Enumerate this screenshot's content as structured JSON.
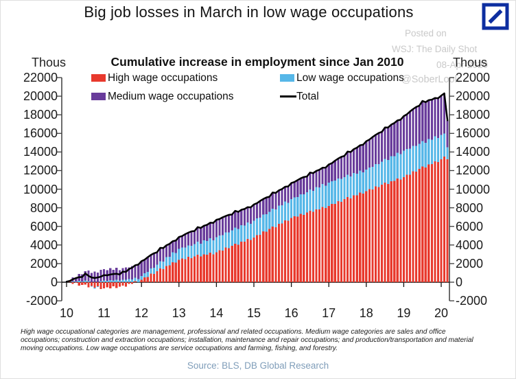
{
  "page": {
    "title": "Big job losses in March in low wage occupations",
    "source": "Source: BLS, DB Global Research",
    "logo": {
      "name": "deutsche-bank-logo",
      "color": "#0d2ea0"
    },
    "watermark": {
      "line1": "Posted on",
      "line2": "WSJ: The Daily Shot",
      "line3": "08-Apr-2020",
      "line4": "@SoberLook"
    },
    "footnote_lines": [
      "High wage occupational categories are management, professional and related occupations. Medium wage categories are sales and office",
      "occupations; construction and extraction occupations; installation, maintenance and repair occupations; and production/transportation and material",
      "moving occupations. Low wage occupations are service occupations and farming, fishing, and forestry."
    ]
  },
  "chart_data": {
    "type": "bar",
    "stacked": true,
    "line_overlay": "Total",
    "title": "Cumulative increase in employment since Jan 2010",
    "y_axis_label_left": "Thous",
    "y_axis_label_right": "Thous",
    "ylim": [
      -2000,
      22000
    ],
    "y_ticks": [
      22000,
      20000,
      18000,
      16000,
      14000,
      12000,
      10000,
      8000,
      6000,
      4000,
      2000,
      0,
      -2000
    ],
    "x_tick_labels": [
      "10",
      "11",
      "12",
      "13",
      "14",
      "15",
      "16",
      "17",
      "18",
      "19",
      "20"
    ],
    "x_start": "2010-01",
    "x_end": "2020-03",
    "frequency": "monthly",
    "grid": false,
    "legend_position": "top-inside",
    "bar_stack_order": [
      "High wage occupations",
      "Low wage occupations",
      "Medium wage occupations"
    ],
    "axis_color": "#3c3c3c",
    "series": [
      {
        "name": "High wage occupations",
        "color": "#e8392d",
        "values": [
          0,
          20,
          -200,
          -80,
          -360,
          -280,
          -260,
          -550,
          -410,
          -580,
          -460,
          -740,
          -650,
          -540,
          -670,
          -460,
          -640,
          -480,
          -360,
          -490,
          -180,
          -180,
          110,
          0,
          250,
          520,
          540,
          910,
          880,
          1200,
          1460,
          1390,
          1750,
          1810,
          2150,
          2090,
          2400,
          2560,
          2460,
          2720,
          2580,
          2780,
          2940,
          2760,
          3000,
          2950,
          3180,
          3000,
          3200,
          3420,
          3400,
          3720,
          3640,
          3920,
          4140,
          4020,
          4340,
          4350,
          4640,
          4540,
          4800,
          5070,
          5080,
          5450,
          5410,
          5730,
          5990,
          5920,
          6270,
          6330,
          6660,
          6600,
          6900,
          7100,
          7050,
          7350,
          7240,
          7490,
          7690,
          7550,
          7840,
          7830,
          8090,
          7960,
          8200,
          8420,
          8400,
          8720,
          8640,
          8920,
          9140,
          9020,
          9340,
          9350,
          9640,
          9540,
          9800,
          10020,
          9980,
          10300,
          10210,
          10480,
          10690,
          10570,
          10870,
          10880,
          11160,
          11050,
          11300,
          11560,
          11560,
          11920,
          11880,
          12180,
          12440,
          12340,
          12670,
          12700,
          13010,
          12920,
          13200,
          13500,
          13200
        ]
      },
      {
        "name": "Low wage occupations",
        "color": "#56b7e8",
        "values": [
          20,
          0,
          90,
          60,
          130,
          90,
          170,
          120,
          -80,
          -120,
          -60,
          110,
          170,
          140,
          220,
          180,
          250,
          190,
          270,
          250,
          340,
          310,
          380,
          340,
          420,
          430,
          570,
          570,
          680,
          670,
          800,
          810,
          940,
          940,
          1060,
          1050,
          1170,
          1160,
          1270,
          1240,
          1330,
          1300,
          1400,
          1380,
          1490,
          1470,
          1560,
          1520,
          1620,
          1590,
          1670,
          1630,
          1700,
          1640,
          1720,
          1690,
          1770,
          1730,
          1800,
          1740,
          1820,
          1790,
          1870,
          1830,
          1900,
          1840,
          1920,
          1890,
          1970,
          1930,
          2000,
          1940,
          2020,
          2010,
          2120,
          2110,
          2200,
          2170,
          2270,
          2260,
          2370,
          2360,
          2450,
          2420,
          2520,
          2450,
          2510,
          2430,
          2460,
          2380,
          2420,
          2350,
          2410,
          2330,
          2360,
          2280,
          2320,
          2310,
          2420,
          2400,
          2500,
          2470,
          2570,
          2560,
          2670,
          2660,
          2750,
          2720,
          2820,
          2750,
          2810,
          2730,
          2760,
          2680,
          2720,
          2650,
          2710,
          2630,
          2660,
          2580,
          2620,
          2500,
          1300
        ]
      },
      {
        "name": "Medium wage occupations",
        "color": "#693c9b",
        "values": [
          40,
          110,
          410,
          460,
          770,
          750,
          1030,
          1120,
          1000,
          1150,
          1030,
          1230,
          1240,
          1140,
          1280,
          1160,
          1300,
          1120,
          1230,
          1350,
          1250,
          1430,
          1330,
          1550,
          1590,
          1470,
          1580,
          1440,
          1550,
          1350,
          1430,
          1470,
          1280,
          1380,
          1200,
          1340,
          1290,
          1240,
          1430,
          1360,
          1550,
          1420,
          1580,
          1690,
          1580,
          1750,
          1650,
          1860,
          1890,
          1780,
          1910,
          1770,
          1900,
          1710,
          1810,
          1850,
          1680,
          1790,
          1630,
          1770,
          1740,
          1640,
          1780,
          1660,
          1800,
          1620,
          1730,
          1790,
          1630,
          1750,
          1600,
          1760,
          1740,
          1660,
          1810,
          1710,
          1870,
          1700,
          1830,
          1910,
          1760,
          1900,
          1770,
          1940,
          1940,
          1930,
          2160,
          2140,
          2370,
          2280,
          2480,
          2630,
          2560,
          2780,
          2720,
          2970,
          3040,
          3000,
          3200,
          3140,
          3330,
          3210,
          3380,
          3500,
          3400,
          3580,
          3480,
          3700,
          3740,
          3740,
          3980,
          3960,
          4200,
          4120,
          4330,
          4370,
          4200,
          4300,
          4130,
          4280,
          4240,
          4300,
          2900
        ]
      }
    ],
    "total_series": {
      "name": "Total",
      "color": "#000000",
      "derived": "sum of stacked series"
    }
  }
}
